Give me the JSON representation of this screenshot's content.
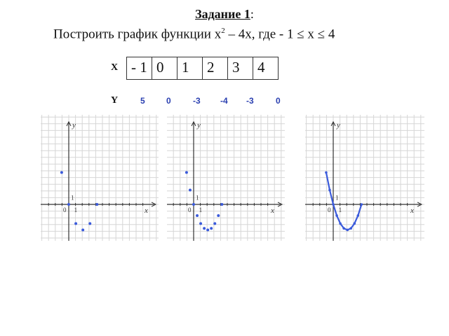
{
  "header": {
    "task_label": "Задание 1",
    "colon": ":"
  },
  "task": {
    "prefix": "Построить график функции ",
    "x": "х",
    "exp": "2",
    "rest": " – 4х,  где  - 1 ≤ х ≤ 4"
  },
  "table": {
    "x_label": "Х",
    "y_label": "Y",
    "x_values": [
      "- 1",
      "0",
      "1",
      "2",
      "3",
      "4"
    ],
    "y_values": [
      "5",
      "0",
      "-3",
      "-4",
      "-3",
      "0"
    ]
  },
  "graphs": {
    "axis_x": "х",
    "axis_y": "у",
    "origin": "0",
    "one": "1"
  },
  "chart_data": [
    {
      "type": "scatter",
      "points": [
        [
          -1,
          5
        ],
        [
          0,
          0
        ],
        [
          1,
          -3
        ],
        [
          2,
          -4
        ],
        [
          3,
          -3
        ],
        [
          4,
          0
        ]
      ],
      "color": "#3b5bdb"
    },
    {
      "type": "scatter",
      "points": [
        [
          -1,
          5
        ],
        [
          -0.5,
          2.25
        ],
        [
          0,
          0
        ],
        [
          0.5,
          -1.75
        ],
        [
          1,
          -3
        ],
        [
          1.5,
          -3.75
        ],
        [
          2,
          -4
        ],
        [
          2.5,
          -3.75
        ],
        [
          3,
          -3
        ],
        [
          3.5,
          -1.75
        ],
        [
          4,
          0
        ]
      ],
      "color": "#3b5bdb"
    },
    {
      "type": "line",
      "points": [
        [
          -1,
          5
        ],
        [
          -0.5,
          2.25
        ],
        [
          0,
          0
        ],
        [
          0.5,
          -1.75
        ],
        [
          1,
          -3
        ],
        [
          1.5,
          -3.75
        ],
        [
          2,
          -4
        ],
        [
          2.5,
          -3.75
        ],
        [
          3,
          -3
        ],
        [
          3.5,
          -1.75
        ],
        [
          4,
          0
        ]
      ],
      "color": "#3b5bdb"
    }
  ]
}
